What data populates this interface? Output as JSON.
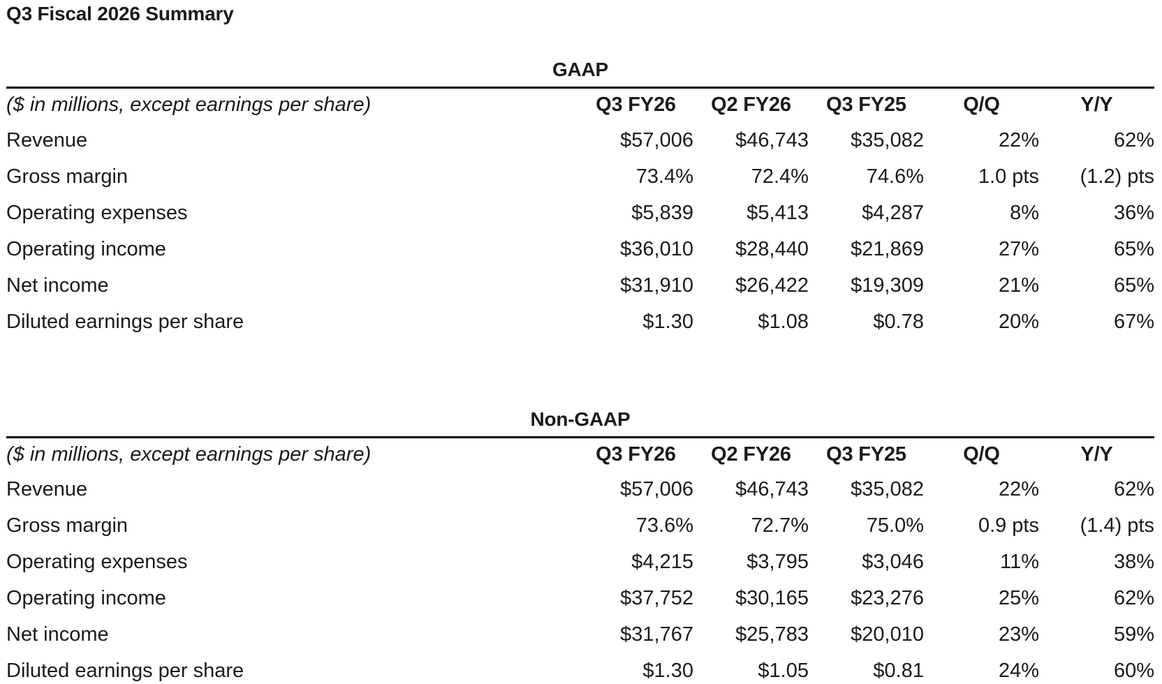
{
  "page": {
    "title": "Q3 Fiscal 2026 Summary"
  },
  "colors": {
    "text": "#1b1b1b",
    "rule": "#000000",
    "background": "#ffffff"
  },
  "tables": [
    {
      "section_title": "GAAP",
      "unit_note": "($ in millions, except earnings per share)",
      "columns": [
        "Q3 FY26",
        "Q2 FY26",
        "Q3 FY25",
        "Q/Q",
        "Y/Y"
      ],
      "rows": [
        {
          "label": "Revenue",
          "values": [
            "$57,006",
            "$46,743",
            "$35,082",
            "22%",
            "62%"
          ]
        },
        {
          "label": "Gross margin",
          "values": [
            "73.4%",
            "72.4%",
            "74.6%",
            "1.0 pts",
            "(1.2) pts"
          ]
        },
        {
          "label": "Operating expenses",
          "values": [
            "$5,839",
            "$5,413",
            "$4,287",
            "8%",
            "36%"
          ]
        },
        {
          "label": "Operating income",
          "values": [
            "$36,010",
            "$28,440",
            "$21,869",
            "27%",
            "65%"
          ]
        },
        {
          "label": "Net income",
          "values": [
            "$31,910",
            "$26,422",
            "$19,309",
            "21%",
            "65%"
          ]
        },
        {
          "label": "Diluted earnings per share",
          "values": [
            "$1.30",
            "$1.08",
            "$0.78",
            "20%",
            "67%"
          ]
        }
      ]
    },
    {
      "section_title": "Non-GAAP",
      "unit_note": "($ in millions, except earnings per share)",
      "columns": [
        "Q3 FY26",
        "Q2 FY26",
        "Q3 FY25",
        "Q/Q",
        "Y/Y"
      ],
      "rows": [
        {
          "label": "Revenue",
          "values": [
            "$57,006",
            "$46,743",
            "$35,082",
            "22%",
            "62%"
          ]
        },
        {
          "label": "Gross margin",
          "values": [
            "73.6%",
            "72.7%",
            "75.0%",
            "0.9 pts",
            "(1.4) pts"
          ]
        },
        {
          "label": "Operating expenses",
          "values": [
            "$4,215",
            "$3,795",
            "$3,046",
            "11%",
            "38%"
          ]
        },
        {
          "label": "Operating income",
          "values": [
            "$37,752",
            "$30,165",
            "$23,276",
            "25%",
            "62%"
          ]
        },
        {
          "label": "Net income",
          "values": [
            "$31,767",
            "$25,783",
            "$20,010",
            "23%",
            "59%"
          ]
        },
        {
          "label": "Diluted earnings per share",
          "values": [
            "$1.30",
            "$1.05",
            "$0.81",
            "24%",
            "60%"
          ]
        }
      ]
    }
  ]
}
